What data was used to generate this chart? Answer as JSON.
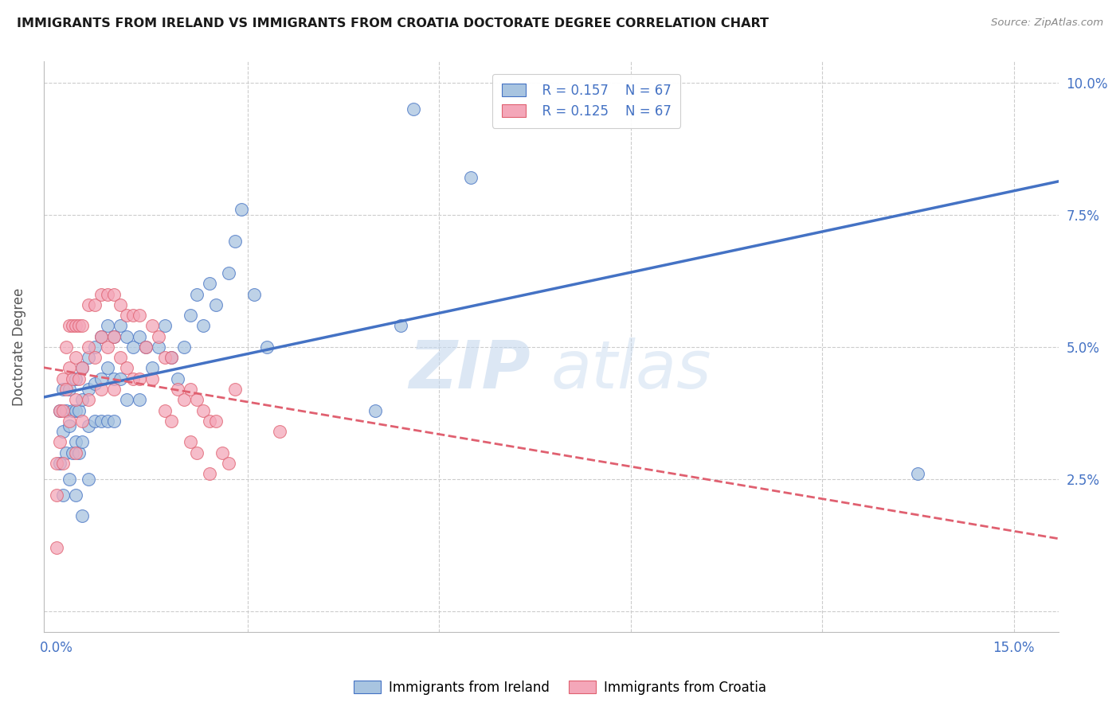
{
  "title": "IMMIGRANTS FROM IRELAND VS IMMIGRANTS FROM CROATIA DOCTORATE DEGREE CORRELATION CHART",
  "source": "Source: ZipAtlas.com",
  "xlim": [
    -0.002,
    0.157
  ],
  "ylim": [
    -0.004,
    0.104
  ],
  "ylabel": "Doctorate Degree",
  "legend_R_ireland": "0.157",
  "legend_N_ireland": "67",
  "legend_R_croatia": "0.125",
  "legend_N_croatia": "67",
  "color_ireland_fill": "#a8c4e0",
  "color_ireland_edge": "#4472C4",
  "color_croatia_fill": "#f4a7b9",
  "color_croatia_edge": "#E06070",
  "color_line_ireland": "#4472C4",
  "color_line_croatia": "#E06070",
  "watermark_zip": "ZIP",
  "watermark_atlas": "atlas",
  "xtick_positions": [
    0.0,
    0.03,
    0.06,
    0.09,
    0.12,
    0.15
  ],
  "xtick_labels": [
    "0.0%",
    "",
    "",
    "",
    "",
    "15.0%"
  ],
  "ytick_positions": [
    0.0,
    0.025,
    0.05,
    0.075,
    0.1
  ],
  "ytick_labels": [
    "",
    "2.5%",
    "5.0%",
    "7.5%",
    "10.0%"
  ],
  "ireland_x": [
    0.0005,
    0.0005,
    0.001,
    0.001,
    0.001,
    0.0015,
    0.0015,
    0.002,
    0.002,
    0.002,
    0.0025,
    0.0025,
    0.003,
    0.003,
    0.003,
    0.003,
    0.0035,
    0.0035,
    0.004,
    0.004,
    0.004,
    0.004,
    0.005,
    0.005,
    0.005,
    0.005,
    0.006,
    0.006,
    0.006,
    0.007,
    0.007,
    0.007,
    0.008,
    0.008,
    0.008,
    0.009,
    0.009,
    0.009,
    0.01,
    0.01,
    0.011,
    0.011,
    0.012,
    0.013,
    0.013,
    0.014,
    0.015,
    0.016,
    0.017,
    0.018,
    0.019,
    0.02,
    0.021,
    0.022,
    0.023,
    0.024,
    0.025,
    0.027,
    0.028,
    0.029,
    0.031,
    0.033,
    0.05,
    0.054,
    0.056,
    0.065,
    0.135
  ],
  "ireland_y": [
    0.038,
    0.028,
    0.042,
    0.034,
    0.022,
    0.038,
    0.03,
    0.042,
    0.035,
    0.025,
    0.038,
    0.03,
    0.044,
    0.038,
    0.032,
    0.022,
    0.038,
    0.03,
    0.046,
    0.04,
    0.032,
    0.018,
    0.048,
    0.042,
    0.035,
    0.025,
    0.05,
    0.043,
    0.036,
    0.052,
    0.044,
    0.036,
    0.054,
    0.046,
    0.036,
    0.052,
    0.044,
    0.036,
    0.054,
    0.044,
    0.052,
    0.04,
    0.05,
    0.052,
    0.04,
    0.05,
    0.046,
    0.05,
    0.054,
    0.048,
    0.044,
    0.05,
    0.056,
    0.06,
    0.054,
    0.062,
    0.058,
    0.064,
    0.07,
    0.076,
    0.06,
    0.05,
    0.038,
    0.054,
    0.095,
    0.082,
    0.026
  ],
  "croatia_x": [
    0.0,
    0.0,
    0.0,
    0.0005,
    0.0005,
    0.001,
    0.001,
    0.001,
    0.0015,
    0.0015,
    0.002,
    0.002,
    0.002,
    0.0025,
    0.0025,
    0.003,
    0.003,
    0.003,
    0.003,
    0.0035,
    0.0035,
    0.004,
    0.004,
    0.004,
    0.005,
    0.005,
    0.005,
    0.006,
    0.006,
    0.007,
    0.007,
    0.007,
    0.008,
    0.008,
    0.009,
    0.009,
    0.009,
    0.01,
    0.01,
    0.011,
    0.011,
    0.012,
    0.012,
    0.013,
    0.013,
    0.014,
    0.015,
    0.015,
    0.016,
    0.017,
    0.017,
    0.018,
    0.018,
    0.019,
    0.02,
    0.021,
    0.021,
    0.022,
    0.022,
    0.023,
    0.024,
    0.024,
    0.025,
    0.026,
    0.027,
    0.028,
    0.035
  ],
  "croatia_y": [
    0.028,
    0.022,
    0.012,
    0.038,
    0.032,
    0.044,
    0.038,
    0.028,
    0.05,
    0.042,
    0.054,
    0.046,
    0.036,
    0.054,
    0.044,
    0.054,
    0.048,
    0.04,
    0.03,
    0.054,
    0.044,
    0.054,
    0.046,
    0.036,
    0.058,
    0.05,
    0.04,
    0.058,
    0.048,
    0.06,
    0.052,
    0.042,
    0.06,
    0.05,
    0.06,
    0.052,
    0.042,
    0.058,
    0.048,
    0.056,
    0.046,
    0.056,
    0.044,
    0.056,
    0.044,
    0.05,
    0.054,
    0.044,
    0.052,
    0.048,
    0.038,
    0.048,
    0.036,
    0.042,
    0.04,
    0.042,
    0.032,
    0.04,
    0.03,
    0.038,
    0.036,
    0.026,
    0.036,
    0.03,
    0.028,
    0.042,
    0.034
  ]
}
